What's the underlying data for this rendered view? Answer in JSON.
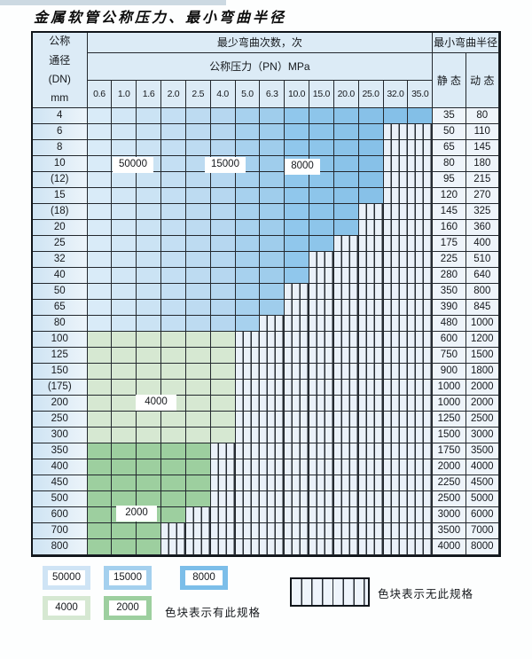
{
  "page": {
    "title": "金属软管公称压力、最小弯曲半径"
  },
  "table": {
    "header": {
      "dn_lines": [
        "公称",
        "通径",
        "(DN)",
        "mm"
      ],
      "cycles_title": "最少弯曲次数，次",
      "pressure_title": "公称压力（PN）MPa",
      "radius_title": "最小弯曲半径",
      "static_label": "静 态",
      "dynamic_label": "动 态",
      "pressure_values": [
        "0.6",
        "1.0",
        "1.6",
        "2.0",
        "2.5",
        "4.0",
        "5.0",
        "6.3",
        "10.0",
        "15.0",
        "20.0",
        "25.0",
        "32.0",
        "35.0"
      ]
    },
    "cycle_bands_blue": [
      {
        "pressure_cols": "0.6–4.0",
        "cycles": 50000
      },
      {
        "pressure_cols": "5.0–6.3",
        "cycles": 15000
      },
      {
        "pressure_cols": "10.0–35.0",
        "cycles": 8000
      }
    ],
    "rows": [
      {
        "dn": "4",
        "band": "blue",
        "through": 14,
        "static": "35",
        "dynamic": "80"
      },
      {
        "dn": "6",
        "band": "blue",
        "through": 12,
        "static": "50",
        "dynamic": "110"
      },
      {
        "dn": "8",
        "band": "blue",
        "through": 12,
        "static": "65",
        "dynamic": "145"
      },
      {
        "dn": "10",
        "band": "blue",
        "through": 12,
        "static": "80",
        "dynamic": "180"
      },
      {
        "dn": "(12)",
        "band": "blue",
        "through": 12,
        "static": "95",
        "dynamic": "215"
      },
      {
        "dn": "15",
        "band": "blue",
        "through": 12,
        "static": "120",
        "dynamic": "270"
      },
      {
        "dn": "(18)",
        "band": "blue",
        "through": 11,
        "static": "145",
        "dynamic": "325"
      },
      {
        "dn": "20",
        "band": "blue",
        "through": 11,
        "static": "160",
        "dynamic": "360"
      },
      {
        "dn": "25",
        "band": "blue",
        "through": 10,
        "static": "175",
        "dynamic": "400"
      },
      {
        "dn": "32",
        "band": "blue",
        "through": 9,
        "static": "225",
        "dynamic": "510"
      },
      {
        "dn": "40",
        "band": "blue",
        "through": 9,
        "static": "280",
        "dynamic": "640"
      },
      {
        "dn": "50",
        "band": "blue",
        "through": 8,
        "static": "350",
        "dynamic": "800"
      },
      {
        "dn": "65",
        "band": "blue",
        "through": 8,
        "static": "390",
        "dynamic": "845"
      },
      {
        "dn": "80",
        "band": "blue",
        "through": 7,
        "static": "480",
        "dynamic": "1000"
      },
      {
        "dn": "100",
        "band": "green4",
        "cycles": 4000,
        "through": 6,
        "static": "600",
        "dynamic": "1200"
      },
      {
        "dn": "125",
        "band": "green4",
        "cycles": 4000,
        "through": 6,
        "static": "750",
        "dynamic": "1500"
      },
      {
        "dn": "150",
        "band": "green4",
        "cycles": 4000,
        "through": 6,
        "static": "900",
        "dynamic": "1800"
      },
      {
        "dn": "(175)",
        "band": "green4",
        "cycles": 4000,
        "through": 6,
        "static": "1000",
        "dynamic": "2000"
      },
      {
        "dn": "200",
        "band": "green4",
        "cycles": 4000,
        "through": 6,
        "static": "1000",
        "dynamic": "2000"
      },
      {
        "dn": "250",
        "band": "green4",
        "cycles": 4000,
        "through": 6,
        "static": "1250",
        "dynamic": "2500"
      },
      {
        "dn": "300",
        "band": "green4",
        "cycles": 4000,
        "through": 6,
        "static": "1500",
        "dynamic": "3000"
      },
      {
        "dn": "350",
        "band": "green2",
        "cycles": 2000,
        "through": 5,
        "static": "1750",
        "dynamic": "3500"
      },
      {
        "dn": "400",
        "band": "green2",
        "cycles": 2000,
        "through": 5,
        "static": "2000",
        "dynamic": "4000"
      },
      {
        "dn": "450",
        "band": "green2",
        "cycles": 2000,
        "through": 5,
        "static": "2250",
        "dynamic": "4500"
      },
      {
        "dn": "500",
        "band": "green2",
        "cycles": 2000,
        "through": 5,
        "static": "2500",
        "dynamic": "5000"
      },
      {
        "dn": "600",
        "band": "green2",
        "cycles": 2000,
        "through": 4,
        "static": "3000",
        "dynamic": "6000"
      },
      {
        "dn": "700",
        "band": "green2",
        "cycles": 2000,
        "through": 3,
        "static": "3500",
        "dynamic": "7000"
      },
      {
        "dn": "800",
        "band": "green2",
        "cycles": 2000,
        "through": 3,
        "static": "4000",
        "dynamic": "8000"
      }
    ],
    "overlay_labels": [
      {
        "id": "lbl-50000",
        "text": "50000"
      },
      {
        "id": "lbl-15000",
        "text": "15000"
      },
      {
        "id": "lbl-8000",
        "text": "8000"
      },
      {
        "id": "lbl-4000",
        "text": "4000"
      },
      {
        "id": "lbl-2000",
        "text": "2000"
      }
    ]
  },
  "legend": {
    "swatches": [
      {
        "label": "50000",
        "color": "#cfe4f5"
      },
      {
        "label": "15000",
        "color": "#a4d0ee"
      },
      {
        "label": "8000",
        "color": "#7cbee9"
      },
      {
        "label": "4000",
        "color": "#d6e8d2"
      },
      {
        "label": "2000",
        "color": "#9dcf9f"
      }
    ],
    "has_spec_text": "色块表示有此规格",
    "no_spec_text": "色块表示无此规格"
  },
  "colors": {
    "cycles_50000": "#cfe4f5",
    "cycles_15000": "#a4d0ee",
    "cycles_8000": "#7cbee9",
    "cycles_4000": "#d6e8d2",
    "cycles_2000": "#9dcf9f",
    "no_spec_bg": "#eaf1f9",
    "header_bg": "#dcebf6"
  }
}
